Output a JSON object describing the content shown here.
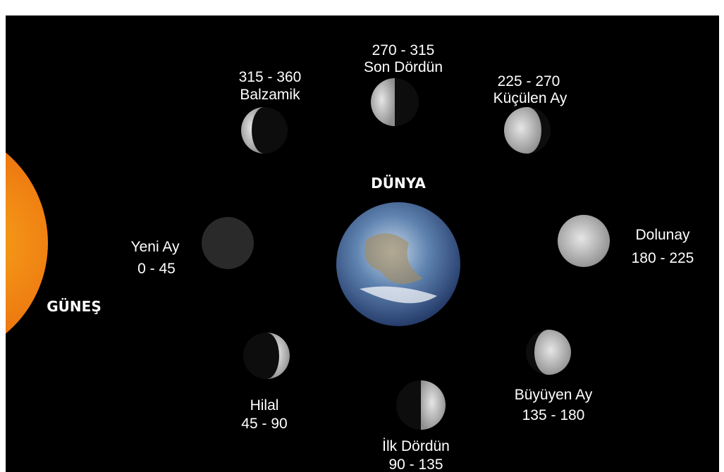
{
  "sun": {
    "label": "GÜNEŞ"
  },
  "earth": {
    "label": "DÜNYA"
  },
  "phases": [
    {
      "name": "Yeni Ay",
      "range": "0 - 45"
    },
    {
      "name": "Hilal",
      "range": "45 - 90"
    },
    {
      "name": "İlk Dördün",
      "range": "90 - 135"
    },
    {
      "name": "Büyüyen Ay",
      "range": "135 - 180"
    },
    {
      "name": "Dolunay",
      "range": "180 - 225"
    },
    {
      "name": "Küçülen Ay",
      "range": "225 - 270"
    },
    {
      "name": "Son Dördün",
      "range": "270 - 315"
    },
    {
      "name": "Balzamik",
      "range": "315 - 360"
    }
  ]
}
